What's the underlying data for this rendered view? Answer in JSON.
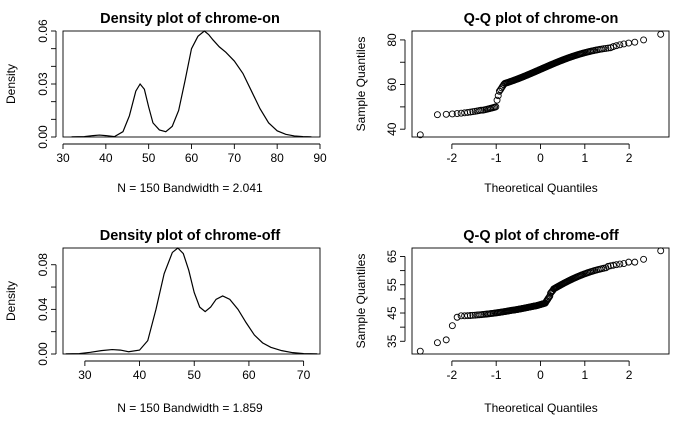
{
  "chart_data": [
    {
      "id": "p1",
      "type": "line",
      "title": "Density plot of chrome-on",
      "xlabel": "N = 150   Bandwidth = 2.041",
      "ylabel": "Density",
      "xlim": [
        30,
        90
      ],
      "ylim": [
        0,
        0.06
      ],
      "xticks": [
        30,
        40,
        50,
        60,
        70,
        80,
        90
      ],
      "yticks": [
        0.0,
        0.03,
        0.06
      ],
      "yticks_minor": [
        0.01,
        0.02,
        0.04,
        0.05
      ],
      "ytick_labels": [
        "0.00",
        "0.03",
        "0.06"
      ],
      "x": [
        32,
        35,
        37,
        38.5,
        40,
        42,
        44,
        45.5,
        47,
        48,
        49,
        50,
        51,
        52.5,
        54,
        55.5,
        57,
        58.5,
        60,
        61.5,
        63,
        64,
        65,
        66.5,
        68,
        70,
        72,
        74,
        76,
        78,
        80,
        82,
        84,
        86,
        88
      ],
      "y": [
        0.0001,
        0.0002,
        0.0008,
        0.0011,
        0.0008,
        0.0002,
        0.003,
        0.012,
        0.026,
        0.03,
        0.027,
        0.017,
        0.008,
        0.004,
        0.003,
        0.006,
        0.015,
        0.032,
        0.05,
        0.057,
        0.06,
        0.058,
        0.055,
        0.051,
        0.048,
        0.043,
        0.036,
        0.026,
        0.016,
        0.008,
        0.0035,
        0.0015,
        0.0006,
        0.0002,
        0.0001
      ]
    },
    {
      "id": "p2",
      "type": "scatter",
      "title": "Q-Q plot of chrome-on",
      "xlabel": "Theoretical Quantiles",
      "ylabel": "Sample Quantiles",
      "xlim": [
        -2.9,
        2.9
      ],
      "ylim": [
        36.5,
        84
      ],
      "xticks": [
        -2,
        -1,
        0,
        1,
        2
      ],
      "yticks": [
        40,
        60,
        80
      ],
      "yticks_minor": [
        50,
        70
      ],
      "n": 150,
      "segments": [
        [
          0,
          1,
          37.5,
          37.5
        ],
        [
          1,
          14,
          46.5,
          48.5
        ],
        [
          14,
          24,
          48.5,
          50
        ],
        [
          24,
          26,
          53,
          55
        ],
        [
          26,
          31,
          57,
          60
        ],
        [
          31,
          142,
          60.5,
          76.5
        ],
        [
          142,
          148,
          77,
          79
        ],
        [
          148,
          149,
          80,
          80
        ],
        [
          149,
          150,
          82.5,
          82.5
        ]
      ]
    },
    {
      "id": "p3",
      "type": "line",
      "title": "Density plot of chrome-off",
      "xlabel": "N = 150   Bandwidth = 1.859",
      "ylabel": "Density",
      "xlim": [
        26,
        73
      ],
      "ylim": [
        0,
        0.095
      ],
      "xticks": [
        30,
        40,
        50,
        60,
        70
      ],
      "yticks": [
        0.0,
        0.04,
        0.08
      ],
      "yticks_minor": [
        0.02,
        0.06
      ],
      "ytick_labels": [
        "0.00",
        "0.04",
        "0.08"
      ],
      "x": [
        26.5,
        29,
        31,
        33,
        35,
        36.5,
        38,
        40,
        41.5,
        43,
        44.5,
        46,
        47,
        48,
        49,
        50,
        51,
        52,
        53,
        54,
        55.2,
        56.5,
        58,
        59.5,
        61,
        62.5,
        64,
        66,
        68,
        70,
        72.5
      ],
      "y": [
        0.0001,
        0.0004,
        0.0015,
        0.003,
        0.004,
        0.0035,
        0.002,
        0.0035,
        0.012,
        0.04,
        0.072,
        0.091,
        0.095,
        0.09,
        0.075,
        0.055,
        0.042,
        0.038,
        0.042,
        0.049,
        0.052,
        0.049,
        0.04,
        0.028,
        0.017,
        0.01,
        0.006,
        0.003,
        0.0012,
        0.0004,
        0.0001
      ]
    },
    {
      "id": "p4",
      "type": "scatter",
      "title": "Q-Q plot of chrome-off",
      "xlabel": "Theoretical Quantiles",
      "ylabel": "Sample Quantiles",
      "xlim": [
        -2.9,
        2.9
      ],
      "ylim": [
        30.5,
        68
      ],
      "xticks": [
        -2,
        -1,
        0,
        1,
        2
      ],
      "yticks": [
        35,
        45,
        55,
        65
      ],
      "yticks_minor": [
        40,
        50,
        60
      ],
      "n": 150,
      "segments": [
        [
          0,
          1,
          31.5,
          31.5
        ],
        [
          1,
          2,
          34.5,
          34.5
        ],
        [
          2,
          3,
          35.5,
          35.5
        ],
        [
          3,
          4,
          40.5,
          40.5
        ],
        [
          4,
          6,
          43.5,
          44
        ],
        [
          6,
          40,
          44,
          46
        ],
        [
          40,
          68,
          46,
          47.5
        ],
        [
          68,
          82,
          47.5,
          48.5
        ],
        [
          82,
          88,
          49,
          51
        ],
        [
          88,
          92,
          52,
          53
        ],
        [
          92,
          140,
          53.5,
          61
        ],
        [
          140,
          146,
          61.5,
          62.5
        ],
        [
          146,
          148,
          63,
          63
        ],
        [
          148,
          149,
          64,
          64
        ],
        [
          149,
          150,
          67,
          67
        ]
      ]
    }
  ]
}
